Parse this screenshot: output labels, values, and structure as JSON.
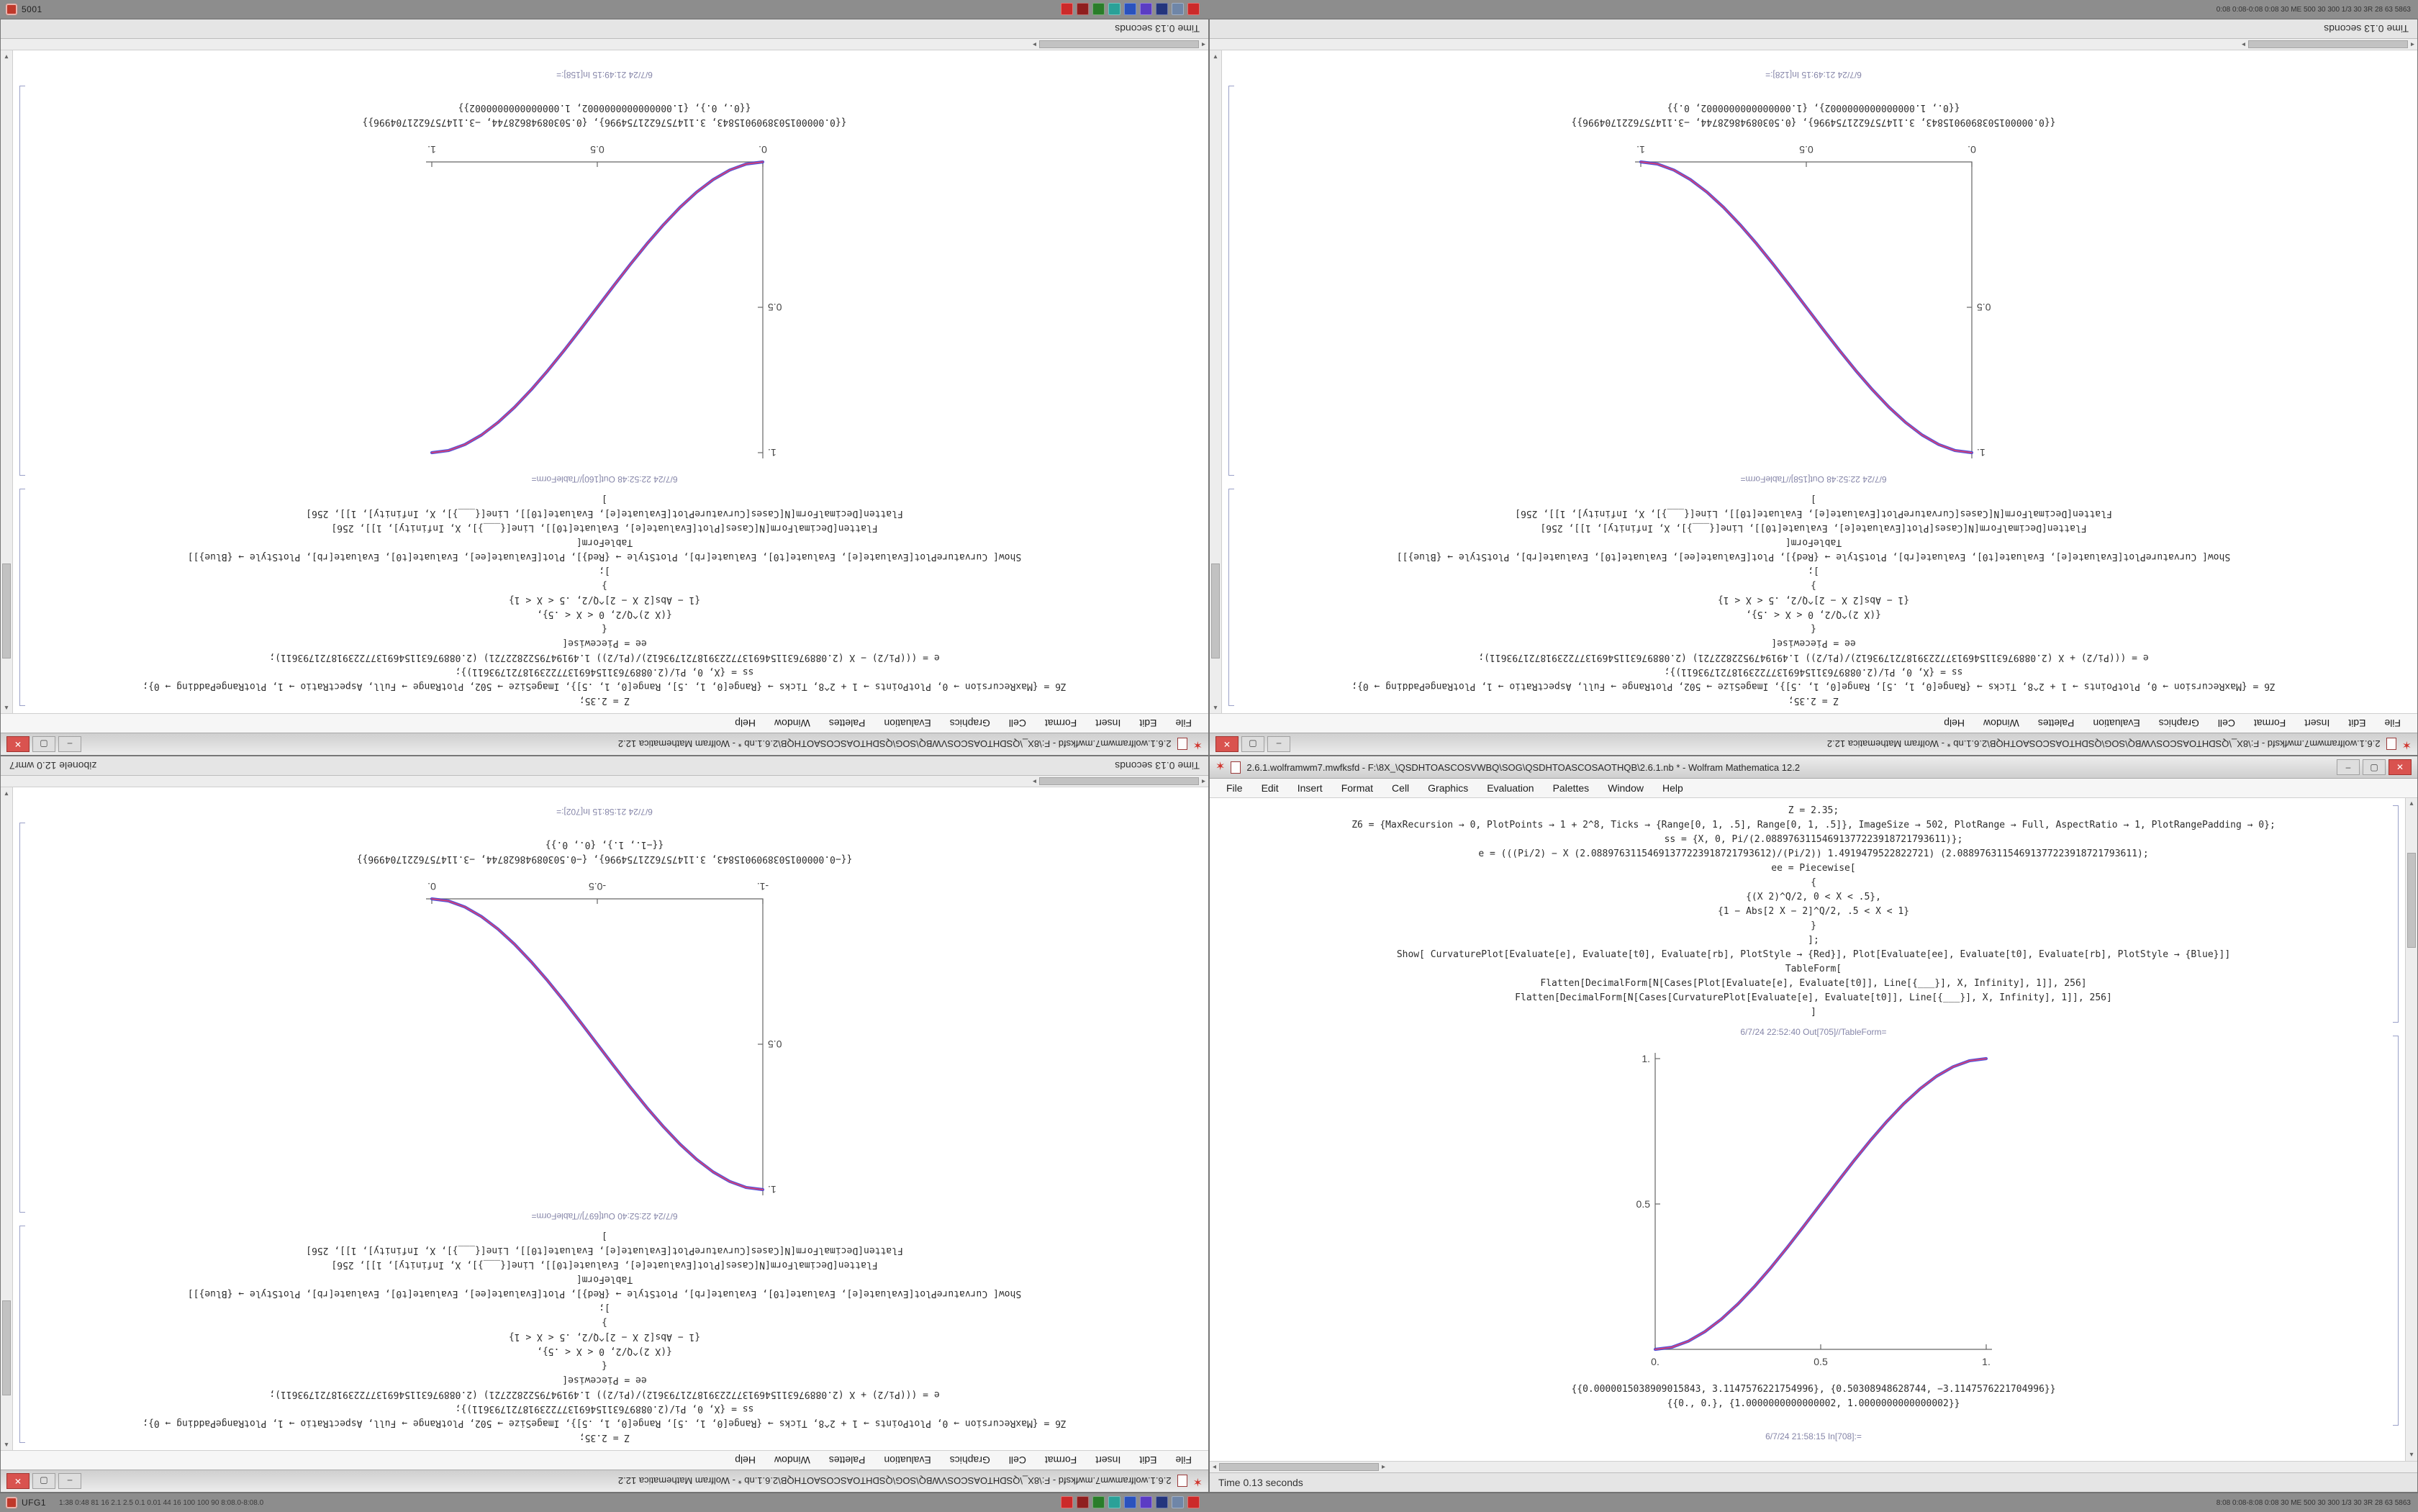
{
  "taskbars": {
    "top": {
      "left_label": "5001",
      "left_text": "",
      "right_text": "0:08 0:08-0:08 0:08 30 ME 500 30 300 1/3 30 3R 28 63 5863",
      "icon_colors": [
        "#cc2a2a",
        "#8f1f1f",
        "#2a7d2a",
        "#2aa198",
        "#2a52be",
        "#5b3cc4",
        "#24357d",
        "#6f86a8",
        "#cc2a2a"
      ]
    },
    "bottom": {
      "left_label": "UFG1",
      "left_text": "1:38 0:48 81 16 2.1 2.5 0.1 0.01 44 16 100 100 90 8:08.0-8:08.0",
      "right_text": "8:08 0:08-8:08 0:08 30 ME 500 30 300 1/3 30 3R 28 63 5863",
      "icon_colors": [
        "#cc2a2a",
        "#8f1f1f",
        "#2a7d2a",
        "#2aa198",
        "#2a52be",
        "#5b3cc4",
        "#24357d",
        "#6f86a8",
        "#cc2a2a"
      ]
    }
  },
  "menu_items": [
    "File",
    "Edit",
    "Insert",
    "Format",
    "Cell",
    "Graphics",
    "Evaluation",
    "Palettes",
    "Window",
    "Help"
  ],
  "window_controls": {
    "minimize": "–",
    "maximize": "▢",
    "close": "✕"
  },
  "windows": [
    {
      "id": "top-left",
      "rotated": true,
      "title": "2.6.1.wolframwm7.mwfksfd - F:\\8X_\\QSDHTOASCOSVWBQ\\SOG\\QSDHTOASCOSAOTHQB\\2.6.1.nb * - Wolfram Mathematica 12.2",
      "code_lines": [
        "Z = 2.35;",
        "Z6 = {MaxRecursion → 0, PlotPoints → 1 + 2^8, Ticks → {Range[0, 1, .5], Range[0, 1, .5]}, ImageSize → 502, PlotRange → Full, AspectRatio → 1, PlotRangePadding → 0};",
        "ss = {X, 0, Pi/(2.08897631154691377223918721793611)};",
        "e = (((Pi/2) − X (2.08897631154691377223918721793612)/(Pi/2)) 1.4919479522822721) (2.08897631154691377223918721793611);",
        "ee = Piecewise[",
        "{",
        "{(X 2)^Q/2, 0 < X < .5},",
        "{1 − Abs[2 X − 2]^Q/2, .5 < X < 1}",
        "}",
        "];",
        "Show[ CurvaturePlot[Evaluate[e], Evaluate[t0], Evaluate[rb], PlotStyle → {Red}], Plot[Evaluate[ee], Evaluate[t0], Evaluate[rb], PlotStyle → {Blue}]]",
        "TableForm[",
        "Flatten[DecimalForm[N[Cases[Plot[Evaluate[e], Evaluate[t0]], Line[{___}], X, Infinity], 1]], 256]",
        "Flatten[DecimalForm[N[Cases[CurvaturePlot[Evaluate[e], Evaluate[t0]], Line[{___}], X, Infinity], 1]], 256]",
        "]"
      ],
      "out_label": "6/7/24 22:52:48 Out[160]//TableForm=",
      "plot": {
        "type": "line",
        "direction": "rising",
        "x_ticks": [
          "0.",
          "0.5",
          "1."
        ],
        "y_ticks": [
          "0.5",
          "1."
        ],
        "x_range": [
          0,
          1
        ],
        "y_range": [
          0,
          1
        ],
        "colors": {
          "blue": "#4040d8",
          "red": "#d84070"
        },
        "points": [
          [
            0,
            0
          ],
          [
            0.05,
            0.0073
          ],
          [
            0.1,
            0.028
          ],
          [
            0.15,
            0.0608
          ],
          [
            0.2,
            0.104
          ],
          [
            0.25,
            0.1563
          ],
          [
            0.3,
            0.216
          ],
          [
            0.35,
            0.2818
          ],
          [
            0.4,
            0.352
          ],
          [
            0.45,
            0.4253
          ],
          [
            0.5,
            0.5
          ],
          [
            0.55,
            0.5748
          ],
          [
            0.6,
            0.648
          ],
          [
            0.65,
            0.7183
          ],
          [
            0.7,
            0.784
          ],
          [
            0.75,
            0.8438
          ],
          [
            0.8,
            0.896
          ],
          [
            0.85,
            0.9393
          ],
          [
            0.9,
            0.972
          ],
          [
            0.95,
            0.9928
          ],
          [
            1,
            1
          ]
        ]
      },
      "results": [
        "{{0.0000015038909015843, 3.1147576221754996}, {0.50308948628744, −3.1147576221704996}}",
        "{{0., 0.}, {1.0000000000000002, 1.0000000000000002}}"
      ],
      "bottom_label": "6/7/24 21:49:15 In[158]:=",
      "status_left": "Time 0.13 seconds",
      "status_right": ""
    },
    {
      "id": "top-right",
      "rotated": true,
      "title": "2.6.1.wolframwm7.mwfksfd - F:\\8X_\\QSDHTOASCOSVWBQ\\SOG\\QSDHTOASCOSAOTHQB\\2.6.1.nb * - Wolfram Mathematica 12.2",
      "code_lines": [
        "Z = 2.35;",
        "Z6 = {MaxRecursion → 0, PlotPoints → 1 + 2^8, Ticks → {Range[0, 1, .5], Range[0, 1, .5]}, ImageSize → 502, PlotRange → Full, AspectRatio → 1, PlotRangePadding → 0};",
        "ss = {X, 0, Pi/(2.08897631154691377223918721793611)};",
        "e = (((Pi/2) + X (2.08897631154691377223918721793612)/(Pi/2)) 1.4919479522822721) (2.08897631154691377223918721793611);",
        "ee = Piecewise[",
        "{",
        "{(X 2)^Q/2, 0 < X < .5},",
        "{1 − Abs[2 X − 2]^Q/2, .5 < X < 1}",
        "}",
        "];",
        "Show[ CurvaturePlot[Evaluate[e], Evaluate[t0], Evaluate[rb], PlotStyle → {Red}], Plot[Evaluate[ee], Evaluate[t0], Evaluate[rb], PlotStyle → {Blue}]]",
        "TableForm[",
        "Flatten[DecimalForm[N[Cases[Plot[Evaluate[e], Evaluate[t0]], Line[{___}], X, Infinity], 1]], 256]",
        "Flatten[DecimalForm[N[Cases[CurvaturePlot[Evaluate[e], Evaluate[t0]], Line[{___}], X, Infinity], 1]], 256]",
        "]"
      ],
      "out_label": "6/7/24 22:52:48 Out[158]//TableForm=",
      "plot": {
        "type": "line",
        "direction": "falling",
        "x_ticks": [
          "0.",
          "0.5",
          "1."
        ],
        "y_ticks": [
          "0.5",
          "1."
        ],
        "x_range": [
          0,
          1
        ],
        "y_range": [
          0,
          1
        ],
        "colors": {
          "blue": "#4040d8",
          "red": "#d84070"
        },
        "points": [
          [
            0,
            1
          ],
          [
            0.05,
            0.9928
          ],
          [
            0.1,
            0.972
          ],
          [
            0.15,
            0.9393
          ],
          [
            0.2,
            0.896
          ],
          [
            0.25,
            0.8438
          ],
          [
            0.3,
            0.784
          ],
          [
            0.35,
            0.7183
          ],
          [
            0.4,
            0.648
          ],
          [
            0.45,
            0.5748
          ],
          [
            0.5,
            0.5
          ],
          [
            0.55,
            0.4253
          ],
          [
            0.6,
            0.352
          ],
          [
            0.65,
            0.2818
          ],
          [
            0.7,
            0.216
          ],
          [
            0.75,
            0.1563
          ],
          [
            0.8,
            0.104
          ],
          [
            0.85,
            0.0608
          ],
          [
            0.9,
            0.028
          ],
          [
            0.95,
            0.0073
          ],
          [
            1,
            0
          ]
        ]
      },
      "results": [
        "{{0.0000015038909015843, 3.1147576221754996}, {0.50308948628744, −3.1147576221704996}}",
        "{{0., 1.0000000000000002}, {1.0000000000000002, 0.}}"
      ],
      "bottom_label": "6/7/24 21:49:15 In[128]:=",
      "status_left": "Time 0.13 seconds",
      "status_right": ""
    },
    {
      "id": "bottom-left",
      "rotated": true,
      "title": "2.6.1.wolframwm7.mwfksfd - F:\\8X_\\QSDHTOASCOSVWBQ\\SOG\\QSDHTOASCOSAOTHQB\\2.6.1.nb * - Wolfram Mathematica 12.2",
      "code_lines": [
        "Z = 2.35;",
        "Z6 = {MaxRecursion → 0, PlotPoints → 1 + 2^8, Ticks → {Range[0, 1, .5], Range[0, 1, .5]}, ImageSize → 502, PlotRange → Full, AspectRatio → 1, PlotRangePadding → 0};",
        "ss = {X, 0, Pi/(2.08897631154691377223918721793611)};",
        "e = (((Pi/2) + X (2.08897631154691377223918721793612)/(Pi/2)) 1.4919479522822721) (2.08897631154691377223918721793611);",
        "ee = Piecewise[",
        "{",
        "{(X 2)^Q/2, 0 < X < .5},",
        "{1 − Abs[2 X − 2]^Q/2, .5 < X < 1}",
        "}",
        "];",
        "Show[ CurvaturePlot[Evaluate[e], Evaluate[t0], Evaluate[rb], PlotStyle → {Red}], Plot[Evaluate[ee], Evaluate[t0], Evaluate[rb], PlotStyle → {Blue}]]",
        "TableForm[",
        "Flatten[DecimalForm[N[Cases[Plot[Evaluate[e], Evaluate[t0]], Line[{___}], X, Infinity], 1]], 256]",
        "Flatten[DecimalForm[N[Cases[CurvaturePlot[Evaluate[e], Evaluate[t0]], Line[{___}], X, Infinity], 1]], 256]",
        "]"
      ],
      "out_label": "6/7/24 22:52:40 Out[697]//TableForm=",
      "plot": {
        "type": "line",
        "direction": "falling",
        "x_ticks": [
          "-1.",
          "-0.5",
          "0."
        ],
        "y_ticks": [
          "0.5",
          "1."
        ],
        "x_range": [
          -1,
          0
        ],
        "y_range": [
          0,
          1
        ],
        "colors": {
          "blue": "#4040d8",
          "red": "#d84070"
        },
        "points": [
          [
            0,
            1
          ],
          [
            0.05,
            0.9928
          ],
          [
            0.1,
            0.972
          ],
          [
            0.15,
            0.9393
          ],
          [
            0.2,
            0.896
          ],
          [
            0.25,
            0.8438
          ],
          [
            0.3,
            0.784
          ],
          [
            0.35,
            0.7183
          ],
          [
            0.4,
            0.648
          ],
          [
            0.45,
            0.5748
          ],
          [
            0.5,
            0.5
          ],
          [
            0.55,
            0.4253
          ],
          [
            0.6,
            0.352
          ],
          [
            0.65,
            0.2818
          ],
          [
            0.7,
            0.216
          ],
          [
            0.75,
            0.1563
          ],
          [
            0.8,
            0.104
          ],
          [
            0.85,
            0.0608
          ],
          [
            0.9,
            0.028
          ],
          [
            0.95,
            0.0073
          ],
          [
            1,
            0
          ]
        ]
      },
      "results": [
        "{{−0.0000015038909015843, 3.1147576221754996}, {−0.50308948628744, −3.1147576221704996}}",
        "{{−1., 1.}, {0., 0.}}"
      ],
      "bottom_label": "6/7/24 21:58:15 In[702]:=",
      "status_left": "Time 0.13 seconds",
      "status_right": "zibonele 12.0 wmr7"
    },
    {
      "id": "bottom-right",
      "rotated": false,
      "title": "2.6.1.wolframwm7.mwfksfd - F:\\8X_\\QSDHTOASCOSVWBQ\\SOG\\QSDHTOASCOSAOTHQB\\2.6.1.nb * - Wolfram Mathematica 12.2",
      "code_lines": [
        "Z = 2.35;",
        "Z6 = {MaxRecursion → 0, PlotPoints → 1 + 2^8, Ticks → {Range[0, 1, .5], Range[0, 1, .5]}, ImageSize → 502, PlotRange → Full, AspectRatio → 1, PlotRangePadding → 0};",
        "ss = {X, 0, Pi/(2.08897631154691377223918721793611)};",
        "e = (((Pi/2) − X (2.08897631154691377223918721793612)/(Pi/2)) 1.4919479522822721) (2.08897631154691377223918721793611);",
        "ee = Piecewise[",
        "{",
        "{(X 2)^Q/2, 0 < X < .5},",
        "{1 − Abs[2 X − 2]^Q/2, .5 < X < 1}",
        "}",
        "];",
        "Show[ CurvaturePlot[Evaluate[e], Evaluate[t0], Evaluate[rb], PlotStyle → {Red}], Plot[Evaluate[ee], Evaluate[t0], Evaluate[rb], PlotStyle → {Blue}]]",
        "TableForm[",
        "Flatten[DecimalForm[N[Cases[Plot[Evaluate[e], Evaluate[t0]], Line[{___}], X, Infinity], 1]], 256]",
        "Flatten[DecimalForm[N[Cases[CurvaturePlot[Evaluate[e], Evaluate[t0]], Line[{___}], X, Infinity], 1]], 256]",
        "]"
      ],
      "out_label": "6/7/24 22:52:40 Out[705]//TableForm=",
      "plot": {
        "type": "line",
        "direction": "rising",
        "x_ticks": [
          "0.",
          "0.5",
          "1."
        ],
        "y_ticks": [
          "0.5",
          "1."
        ],
        "x_range": [
          0,
          1
        ],
        "y_range": [
          0,
          1
        ],
        "colors": {
          "blue": "#4040d8",
          "red": "#d84070"
        },
        "points": [
          [
            0,
            0
          ],
          [
            0.05,
            0.0073
          ],
          [
            0.1,
            0.028
          ],
          [
            0.15,
            0.0608
          ],
          [
            0.2,
            0.104
          ],
          [
            0.25,
            0.1563
          ],
          [
            0.3,
            0.216
          ],
          [
            0.35,
            0.2818
          ],
          [
            0.4,
            0.352
          ],
          [
            0.45,
            0.4253
          ],
          [
            0.5,
            0.5
          ],
          [
            0.55,
            0.5748
          ],
          [
            0.6,
            0.648
          ],
          [
            0.65,
            0.7183
          ],
          [
            0.7,
            0.784
          ],
          [
            0.75,
            0.8438
          ],
          [
            0.8,
            0.896
          ],
          [
            0.85,
            0.9393
          ],
          [
            0.9,
            0.972
          ],
          [
            0.95,
            0.9928
          ],
          [
            1,
            1
          ]
        ]
      },
      "results": [
        "{{0.0000015038909015843, 3.1147576221754996}, {0.50308948628744, −3.1147576221704996}}",
        "{{0., 0.}, {1.0000000000000002, 1.0000000000000002}}"
      ],
      "bottom_label": "6/7/24 21:58:15 In[708]:=",
      "status_left": "Time 0.13 seconds",
      "status_right": ""
    }
  ]
}
